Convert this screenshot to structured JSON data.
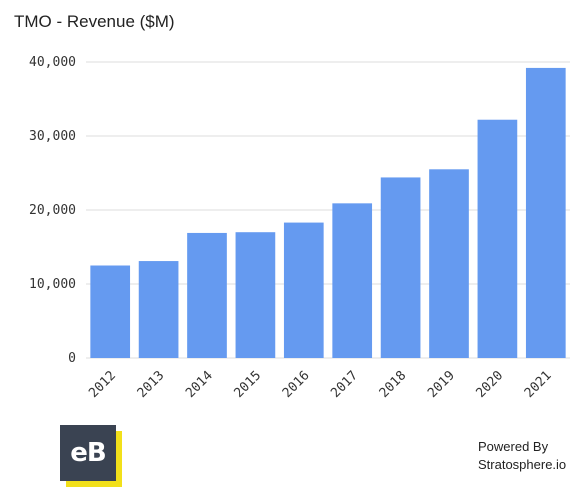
{
  "chart_data": {
    "type": "bar",
    "title": "TMO - Revenue ($M)",
    "categories": [
      "2012",
      "2013",
      "2014",
      "2015",
      "2016",
      "2017",
      "2018",
      "2019",
      "2020",
      "2021"
    ],
    "values": [
      12500,
      13100,
      16900,
      17000,
      18300,
      20900,
      24400,
      25500,
      32200,
      39200
    ],
    "ylim": [
      0,
      40000
    ],
    "yticks": [
      0,
      10000,
      20000,
      30000,
      40000
    ],
    "ytick_labels": [
      "0",
      "10,000",
      "20,000",
      "30,000",
      "40,000"
    ],
    "grid": true,
    "bar_color": "#659af0",
    "grid_color": "#dddddd"
  },
  "logo": {
    "text": "eB"
  },
  "footer": {
    "line1": "Powered By",
    "line2": "Stratosphere.io"
  }
}
